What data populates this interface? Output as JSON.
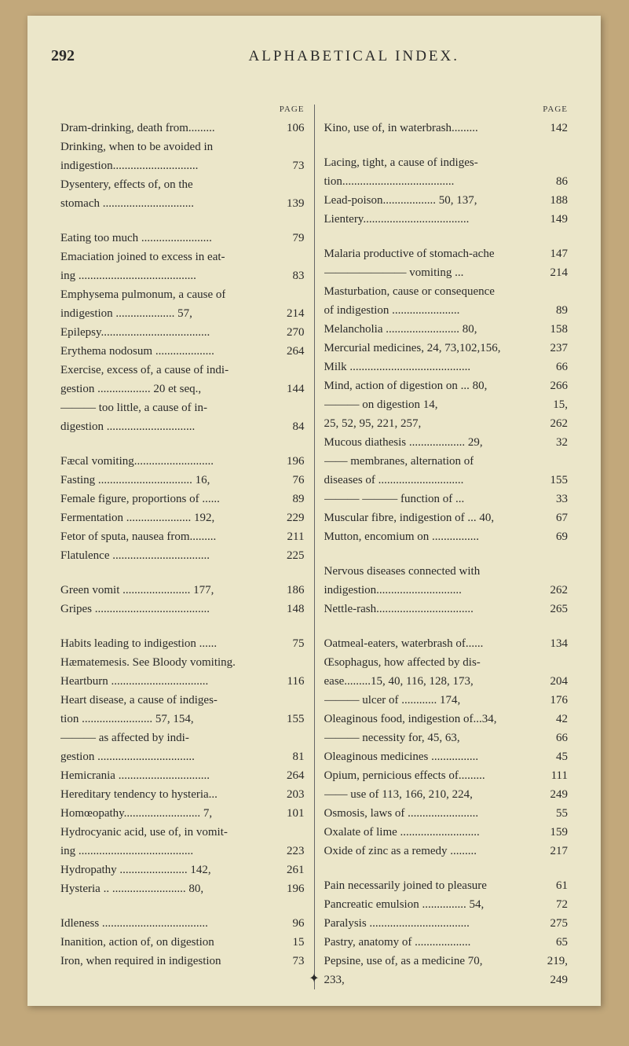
{
  "page_number": "292",
  "title": "ALPHABETICAL INDEX.",
  "col_header_left": "PAGE",
  "col_header_right": "PAGE",
  "footer_symbol": "✦",
  "left_column": [
    {
      "text": "Dram-drinking, death from.........",
      "page": "106"
    },
    {
      "text": "Drinking, when to be avoided in",
      "page": ""
    },
    {
      "text": "    indigestion.............................",
      "page": "73"
    },
    {
      "text": "Dysentery, effects of, on the",
      "page": ""
    },
    {
      "text": "    stomach ...............................",
      "page": "139"
    },
    {
      "gap": true
    },
    {
      "text": "Eating too much ........................",
      "page": "79"
    },
    {
      "text": "Emaciation joined to excess in eat-",
      "page": ""
    },
    {
      "text": "    ing ........................................",
      "page": "83"
    },
    {
      "text": "Emphysema pulmonum, a cause of",
      "page": ""
    },
    {
      "text": "    indigestion .................... 57,",
      "page": "214"
    },
    {
      "text": "Epilepsy.....................................",
      "page": "270"
    },
    {
      "text": "Erythema nodosum ....................",
      "page": "264"
    },
    {
      "text": "Exercise, excess of, a cause of indi-",
      "page": ""
    },
    {
      "text": "    gestion .................. 20 et seq.,",
      "page": "144"
    },
    {
      "text": "——— too little, a cause of in-",
      "page": ""
    },
    {
      "text": "    digestion ..............................",
      "page": "84"
    },
    {
      "gap": true
    },
    {
      "text": "Fæcal vomiting...........................",
      "page": "196"
    },
    {
      "text": "Fasting ................................ 16,",
      "page": "76"
    },
    {
      "text": "Female figure, proportions of ......",
      "page": "89"
    },
    {
      "text": "Fermentation ...................... 192,",
      "page": "229"
    },
    {
      "text": "Fetor of sputa, nausea from.........",
      "page": "211"
    },
    {
      "text": "Flatulence .................................",
      "page": "225"
    },
    {
      "gap": true
    },
    {
      "text": "Green vomit ....................... 177,",
      "page": "186"
    },
    {
      "text": "Gripes .......................................",
      "page": "148"
    },
    {
      "gap": true
    },
    {
      "text": "Habits leading to indigestion ......",
      "page": "75"
    },
    {
      "text": "Hæmatemesis. See Bloody vomiting.",
      "page": ""
    },
    {
      "text": "Heartburn .................................",
      "page": "116"
    },
    {
      "text": "Heart disease, a cause of indiges-",
      "page": ""
    },
    {
      "text": "    tion ........................ 57, 154,",
      "page": "155"
    },
    {
      "text": "——— as affected by indi-",
      "page": ""
    },
    {
      "text": "    gestion .................................",
      "page": "81"
    },
    {
      "text": "Hemicrania ...............................",
      "page": "264"
    },
    {
      "text": "Hereditary tendency to hysteria...",
      "page": "203"
    },
    {
      "text": "Homœopathy.......................... 7,",
      "page": "101"
    },
    {
      "text": "Hydrocyanic acid, use of, in vomit-",
      "page": ""
    },
    {
      "text": "    ing .......................................",
      "page": "223"
    },
    {
      "text": "Hydropathy ....................... 142,",
      "page": "261"
    },
    {
      "text": "Hysteria .. ......................... 80,",
      "page": "196"
    },
    {
      "gap": true
    },
    {
      "text": "Idleness ....................................",
      "page": "96"
    },
    {
      "text": "Inanition, action of, on digestion",
      "page": "15"
    },
    {
      "text": "Iron, when required in indigestion",
      "page": "73"
    }
  ],
  "right_column": [
    {
      "text": "Kino, use of, in waterbrash.........",
      "page": "142"
    },
    {
      "gap": true
    },
    {
      "text": "Lacing, tight, a cause of indiges-",
      "page": ""
    },
    {
      "text": "    tion......................................",
      "page": "86"
    },
    {
      "text": "Lead-poison.................. 50, 137,",
      "page": "188"
    },
    {
      "text": "Lientery....................................",
      "page": "149"
    },
    {
      "gap": true
    },
    {
      "text": "Malaria productive of stomach-ache",
      "page": "147"
    },
    {
      "text": "——————— vomiting ...",
      "page": "214"
    },
    {
      "text": "Masturbation, cause or consequence",
      "page": ""
    },
    {
      "text": "    of indigestion .......................",
      "page": "89"
    },
    {
      "text": "Melancholia ......................... 80,",
      "page": "158"
    },
    {
      "text": "Mercurial medicines, 24, 73,102,156,",
      "page": "237"
    },
    {
      "text": "Milk .........................................",
      "page": "66"
    },
    {
      "text": "Mind, action of digestion on ... 80,",
      "page": "266"
    },
    {
      "text": "——— on digestion 14,",
      "page": "15,"
    },
    {
      "text": "              25, 52, 95, 221, 257,",
      "page": "262"
    },
    {
      "text": "Mucous diathesis ................... 29,",
      "page": "32"
    },
    {
      "text": "—— membranes, alternation of",
      "page": ""
    },
    {
      "text": "    diseases of .............................",
      "page": "155"
    },
    {
      "text": "——— ——— function of ...",
      "page": "33"
    },
    {
      "text": "Muscular fibre, indigestion of ... 40,",
      "page": "67"
    },
    {
      "text": "Mutton, encomium on ................",
      "page": "69"
    },
    {
      "gap": true
    },
    {
      "text": "Nervous diseases connected with",
      "page": ""
    },
    {
      "text": "    indigestion.............................",
      "page": "262"
    },
    {
      "text": "Nettle-rash.................................",
      "page": "265"
    },
    {
      "gap": true
    },
    {
      "text": "Oatmeal-eaters, waterbrash of......",
      "page": "134"
    },
    {
      "text": "Œsophagus, how affected by dis-",
      "page": ""
    },
    {
      "text": "    ease.........15, 40, 116, 128, 173,",
      "page": "204"
    },
    {
      "text": "——— ulcer of ............ 174,",
      "page": "176"
    },
    {
      "text": "Oleaginous food, indigestion of...34,",
      "page": "42"
    },
    {
      "text": "——— necessity for, 45, 63,",
      "page": "66"
    },
    {
      "text": "Oleaginous medicines ................",
      "page": "45"
    },
    {
      "text": "Opium, pernicious effects of.........",
      "page": "111"
    },
    {
      "text": "—— use of 113, 166, 210, 224,",
      "page": "249"
    },
    {
      "text": "Osmosis, laws of ........................",
      "page": "55"
    },
    {
      "text": "Oxalate of lime ...........................",
      "page": "159"
    },
    {
      "text": "Oxide of zinc as a remedy .........",
      "page": "217"
    },
    {
      "gap": true
    },
    {
      "text": "Pain necessarily joined to pleasure",
      "page": "61"
    },
    {
      "text": "Pancreatic emulsion ............... 54,",
      "page": "72"
    },
    {
      "text": "Paralysis ..................................",
      "page": "275"
    },
    {
      "text": "Pastry, anatomy of ...................",
      "page": "65"
    },
    {
      "text": "Pepsine, use of, as a medicine 70,",
      "page": "219,"
    },
    {
      "text": "                                       233,",
      "page": "249"
    }
  ]
}
